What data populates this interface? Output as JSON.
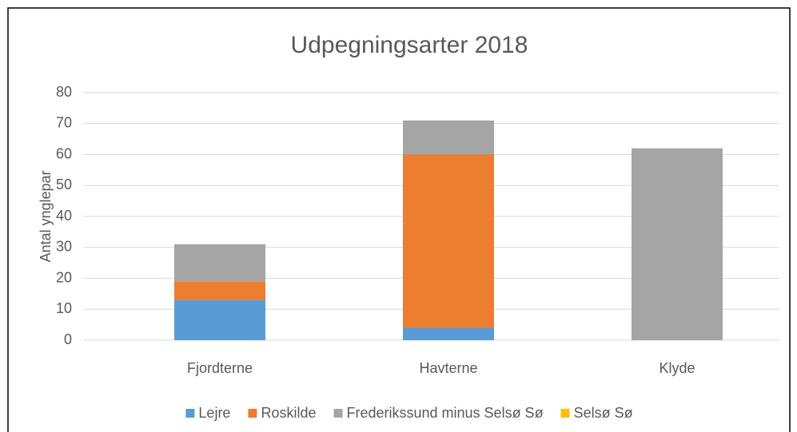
{
  "chart_data": {
    "type": "stacked_bar",
    "title": "Udpegningsarter 2018",
    "y_label": "Antal ynglepar",
    "categories": [
      "Fjordterne",
      "Havterne",
      "Klyde"
    ],
    "series": [
      {
        "name": "Lejre",
        "color": "#5b9bd5",
        "values": [
          13,
          4,
          0
        ]
      },
      {
        "name": "Roskilde",
        "color": "#ed7d31",
        "values": [
          6,
          56,
          0
        ]
      },
      {
        "name": "Frederikssund minus Selsø Sø",
        "color": "#a5a5a5",
        "values": [
          12,
          11,
          62
        ]
      },
      {
        "name": "Selsø Sø",
        "color": "#ffc000",
        "values": [
          0,
          0,
          0
        ]
      }
    ],
    "ylim": [
      0,
      80
    ],
    "yticks": [
      0,
      10,
      20,
      30,
      40,
      50,
      60,
      70,
      80
    ],
    "grid": true,
    "legend": "bottom"
  }
}
